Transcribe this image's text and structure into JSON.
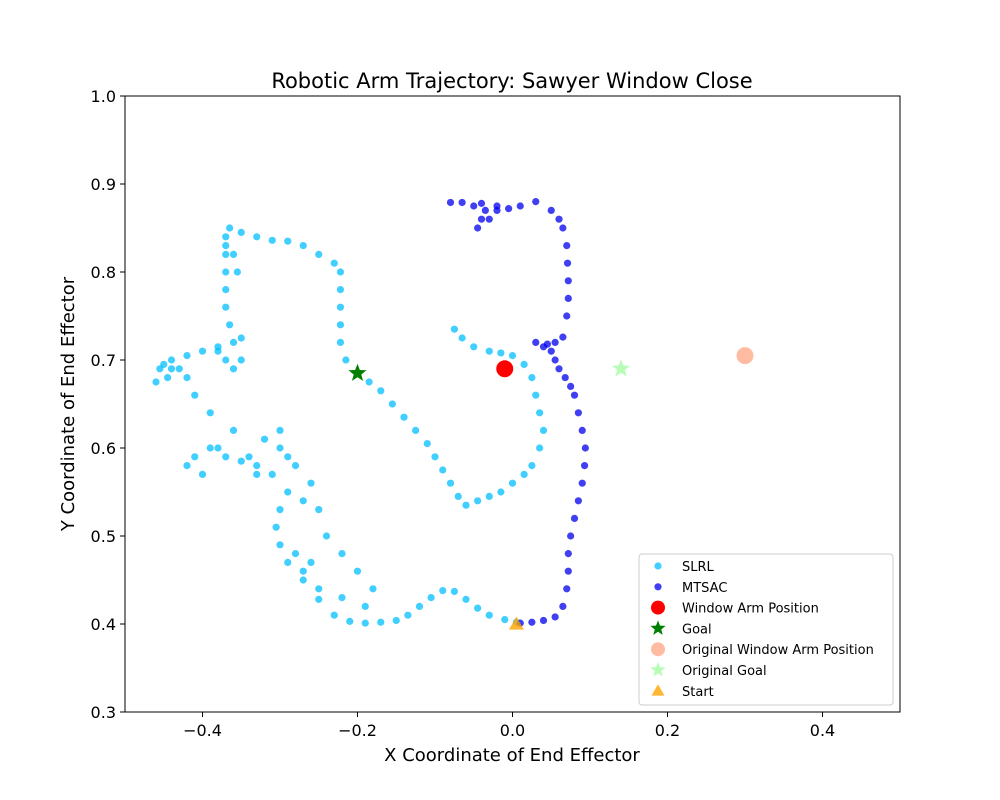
{
  "chart_data": {
    "type": "scatter",
    "title": "Robotic Arm Trajectory: Sawyer Window Close",
    "xlabel": "X Coordinate of End Effector",
    "ylabel": "Y Coordinate of End Effector",
    "xlim": [
      -0.5,
      0.5
    ],
    "ylim": [
      0.3,
      1.0
    ],
    "xticks": [
      -0.4,
      -0.2,
      0.0,
      0.2,
      0.4
    ],
    "xtick_labels": [
      "−0.4",
      "−0.2",
      "0.0",
      "0.2",
      "0.4"
    ],
    "yticks": [
      0.3,
      0.4,
      0.5,
      0.6,
      0.7,
      0.8,
      0.9,
      1.0
    ],
    "ytick_labels": [
      "0.3",
      "0.4",
      "0.5",
      "0.6",
      "0.7",
      "0.8",
      "0.9",
      "1.0"
    ],
    "grid": false,
    "legend_position": "lower-right",
    "colors": {
      "slrl": "#00bfff",
      "mtsac": "#0000ee",
      "window_arm": "#ff0000",
      "goal": "#008000",
      "original_window_arm": "#ffa07a",
      "original_goal": "#98fb98",
      "start": "#ffa500"
    },
    "series": [
      {
        "name": "SLRL",
        "marker": "circle",
        "color": "#00bfff",
        "points": [
          [
            0.005,
            0.402
          ],
          [
            -0.01,
            0.405
          ],
          [
            -0.03,
            0.41
          ],
          [
            -0.045,
            0.418
          ],
          [
            -0.06,
            0.428
          ],
          [
            -0.075,
            0.437
          ],
          [
            -0.09,
            0.438
          ],
          [
            -0.105,
            0.43
          ],
          [
            -0.12,
            0.42
          ],
          [
            -0.135,
            0.41
          ],
          [
            -0.15,
            0.404
          ],
          [
            -0.17,
            0.402
          ],
          [
            -0.19,
            0.401
          ],
          [
            -0.21,
            0.403
          ],
          [
            -0.23,
            0.41
          ],
          [
            -0.25,
            0.428
          ],
          [
            -0.27,
            0.45
          ],
          [
            -0.29,
            0.47
          ],
          [
            -0.3,
            0.49
          ],
          [
            -0.305,
            0.51
          ],
          [
            -0.3,
            0.53
          ],
          [
            -0.29,
            0.55
          ],
          [
            -0.31,
            0.57
          ],
          [
            -0.33,
            0.58
          ],
          [
            -0.35,
            0.585
          ],
          [
            -0.37,
            0.59
          ],
          [
            -0.39,
            0.6
          ],
          [
            -0.41,
            0.59
          ],
          [
            -0.42,
            0.58
          ],
          [
            -0.4,
            0.57
          ],
          [
            -0.38,
            0.6
          ],
          [
            -0.36,
            0.62
          ],
          [
            -0.39,
            0.64
          ],
          [
            -0.41,
            0.66
          ],
          [
            -0.42,
            0.68
          ],
          [
            -0.44,
            0.69
          ],
          [
            -0.45,
            0.695
          ],
          [
            -0.46,
            0.675
          ],
          [
            -0.44,
            0.7
          ],
          [
            -0.42,
            0.705
          ],
          [
            -0.4,
            0.71
          ],
          [
            -0.38,
            0.715
          ],
          [
            -0.36,
            0.72
          ],
          [
            -0.35,
            0.725
          ],
          [
            -0.365,
            0.74
          ],
          [
            -0.37,
            0.76
          ],
          [
            -0.37,
            0.78
          ],
          [
            -0.37,
            0.8
          ],
          [
            -0.37,
            0.82
          ],
          [
            -0.37,
            0.84
          ],
          [
            -0.365,
            0.85
          ],
          [
            -0.35,
            0.845
          ],
          [
            -0.33,
            0.84
          ],
          [
            -0.31,
            0.836
          ],
          [
            -0.29,
            0.835
          ],
          [
            -0.27,
            0.83
          ],
          [
            -0.25,
            0.82
          ],
          [
            -0.23,
            0.81
          ],
          [
            -0.222,
            0.8
          ],
          [
            -0.222,
            0.78
          ],
          [
            -0.222,
            0.76
          ],
          [
            -0.222,
            0.74
          ],
          [
            -0.222,
            0.72
          ],
          [
            -0.215,
            0.7
          ],
          [
            -0.2,
            0.685
          ],
          [
            -0.185,
            0.675
          ],
          [
            -0.17,
            0.665
          ],
          [
            -0.155,
            0.65
          ],
          [
            -0.14,
            0.635
          ],
          [
            -0.125,
            0.62
          ],
          [
            -0.11,
            0.605
          ],
          [
            -0.1,
            0.59
          ],
          [
            -0.09,
            0.575
          ],
          [
            -0.08,
            0.56
          ],
          [
            -0.07,
            0.545
          ],
          [
            -0.06,
            0.535
          ],
          [
            -0.045,
            0.54
          ],
          [
            -0.03,
            0.545
          ],
          [
            -0.015,
            0.55
          ],
          [
            0.0,
            0.56
          ],
          [
            0.015,
            0.57
          ],
          [
            0.025,
            0.58
          ],
          [
            0.035,
            0.6
          ],
          [
            0.04,
            0.62
          ],
          [
            0.035,
            0.64
          ],
          [
            0.03,
            0.66
          ],
          [
            0.025,
            0.68
          ],
          [
            0.015,
            0.695
          ],
          [
            0.0,
            0.705
          ],
          [
            -0.015,
            0.708
          ],
          [
            -0.03,
            0.71
          ],
          [
            -0.05,
            0.715
          ],
          [
            -0.065,
            0.725
          ],
          [
            -0.075,
            0.735
          ],
          [
            -0.28,
            0.48
          ],
          [
            -0.26,
            0.47
          ],
          [
            -0.24,
            0.5
          ],
          [
            -0.22,
            0.48
          ],
          [
            -0.2,
            0.46
          ],
          [
            -0.18,
            0.44
          ],
          [
            -0.19,
            0.42
          ],
          [
            -0.22,
            0.43
          ],
          [
            -0.25,
            0.44
          ],
          [
            -0.27,
            0.46
          ],
          [
            -0.3,
            0.6
          ],
          [
            -0.28,
            0.58
          ],
          [
            -0.26,
            0.56
          ],
          [
            -0.33,
            0.57
          ],
          [
            -0.34,
            0.59
          ],
          [
            -0.32,
            0.61
          ],
          [
            -0.3,
            0.62
          ],
          [
            -0.29,
            0.59
          ],
          [
            -0.27,
            0.54
          ],
          [
            -0.25,
            0.53
          ],
          [
            -0.35,
            0.7
          ],
          [
            -0.36,
            0.69
          ],
          [
            -0.37,
            0.7
          ],
          [
            -0.38,
            0.71
          ],
          [
            -0.43,
            0.69
          ],
          [
            -0.445,
            0.68
          ],
          [
            -0.455,
            0.69
          ],
          [
            -0.37,
            0.83
          ],
          [
            -0.36,
            0.82
          ],
          [
            -0.355,
            0.8
          ]
        ]
      },
      {
        "name": "MTSAC",
        "marker": "circle",
        "color": "#0000ee",
        "points": [
          [
            0.01,
            0.401
          ],
          [
            0.025,
            0.402
          ],
          [
            0.04,
            0.404
          ],
          [
            0.055,
            0.408
          ],
          [
            0.065,
            0.42
          ],
          [
            0.07,
            0.44
          ],
          [
            0.072,
            0.46
          ],
          [
            0.072,
            0.48
          ],
          [
            0.075,
            0.5
          ],
          [
            0.08,
            0.52
          ],
          [
            0.085,
            0.54
          ],
          [
            0.09,
            0.56
          ],
          [
            0.093,
            0.58
          ],
          [
            0.094,
            0.6
          ],
          [
            0.09,
            0.62
          ],
          [
            0.085,
            0.64
          ],
          [
            0.08,
            0.66
          ],
          [
            0.075,
            0.67
          ],
          [
            0.068,
            0.68
          ],
          [
            0.06,
            0.69
          ],
          [
            0.055,
            0.7
          ],
          [
            0.05,
            0.71
          ],
          [
            0.04,
            0.715
          ],
          [
            0.03,
            0.72
          ],
          [
            0.045,
            0.718
          ],
          [
            0.055,
            0.72
          ],
          [
            0.065,
            0.726
          ],
          [
            0.07,
            0.75
          ],
          [
            0.072,
            0.77
          ],
          [
            0.072,
            0.79
          ],
          [
            0.071,
            0.81
          ],
          [
            0.07,
            0.83
          ],
          [
            0.065,
            0.85
          ],
          [
            0.06,
            0.86
          ],
          [
            0.05,
            0.87
          ],
          [
            0.03,
            0.88
          ],
          [
            0.01,
            0.875
          ],
          [
            -0.005,
            0.872
          ],
          [
            -0.02,
            0.87
          ],
          [
            -0.035,
            0.87
          ],
          [
            -0.05,
            0.875
          ],
          [
            -0.065,
            0.879
          ],
          [
            -0.08,
            0.879
          ],
          [
            -0.04,
            0.86
          ],
          [
            -0.045,
            0.85
          ],
          [
            -0.03,
            0.86
          ],
          [
            -0.02,
            0.875
          ],
          [
            -0.04,
            0.878
          ]
        ]
      }
    ],
    "markers": [
      {
        "name": "Window Arm Position",
        "marker": "circle",
        "x": -0.01,
        "y": 0.69,
        "color": "#ff0000"
      },
      {
        "name": "Goal",
        "marker": "star",
        "x": -0.2,
        "y": 0.685,
        "color": "#008000"
      },
      {
        "name": "Original Window Arm Position",
        "marker": "circle",
        "x": 0.3,
        "y": 0.705,
        "color": "#ffa07a"
      },
      {
        "name": "Original Goal",
        "marker": "star",
        "x": 0.14,
        "y": 0.69,
        "color": "#98fb98"
      },
      {
        "name": "Start",
        "marker": "triangle",
        "x": 0.005,
        "y": 0.4,
        "color": "#ffa500"
      }
    ],
    "legend": [
      "SLRL",
      "MTSAC",
      "Window Arm Position",
      "Goal",
      "Original Window Arm Position",
      "Original Goal",
      "Start"
    ]
  }
}
